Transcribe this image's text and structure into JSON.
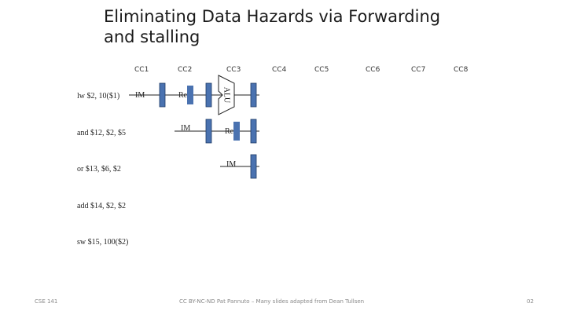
{
  "slide": {
    "title_line1": "Eliminating Data Hazards via Forwarding",
    "title_line2": "and stalling"
  },
  "clock_cycles": [
    "CC1",
    "CC2",
    "CC3",
    "CC4",
    "CC5",
    "CC6",
    "CC7",
    "CC8"
  ],
  "instructions": [
    "lw $2, 10($1)",
    "and $12, $2, $5",
    "or $13, $6, $2",
    "add $14, $2, $2",
    "sw $15, 100($2)"
  ],
  "stages": {
    "im": "IM",
    "reg": "Reg",
    "alu": "ALU"
  },
  "colors": {
    "register_fill": "#4a72b0",
    "register_stroke": "#1f3a66",
    "line": "#222222"
  },
  "footer": {
    "left": "CSE 141",
    "center": "CC BY-NC-ND Pat Pannuto – Many slides adapted from Dean Tullsen",
    "right": "02"
  }
}
